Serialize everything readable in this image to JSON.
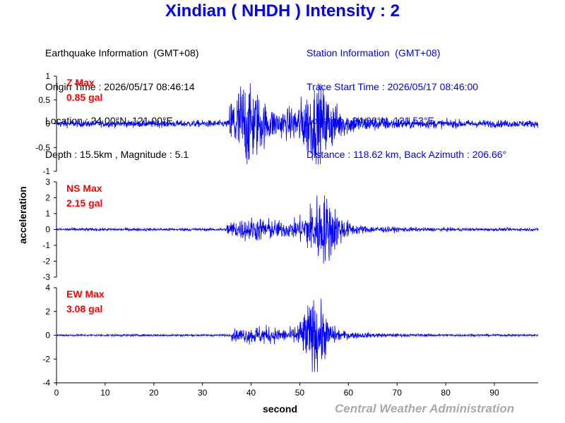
{
  "title": "Xindian ( NHDH ) Intensity : 2",
  "earthquake_info": [
    "Earthquake Information  (GMT+08)",
    "Origin Time : 2026/05/17 08:46:14",
    "Location : 24.00°N, 121.00°E",
    "Depth : 15.5km , Magnitude : 5.1"
  ],
  "station_info": [
    "Station Information  (GMT+08)",
    "Trace Start Time : 2026/05/17 08:46:00",
    "Location : 24.96°N, 121.53°E",
    "Distance : 118.62 km, Back Azimuth : 206.66°"
  ],
  "watermark": "Central Weather Administration",
  "chart_data": {
    "type": "line",
    "xlabel": "second",
    "ylabel": "acceleration",
    "xlim": [
      0,
      99
    ],
    "xticks": [
      0,
      10,
      20,
      30,
      40,
      50,
      60,
      70,
      80,
      90
    ],
    "grid": false,
    "colors": {
      "trace": "#0000ff",
      "annotation": "#ff0000",
      "axis": "#000000"
    },
    "panels": [
      {
        "component": "Z",
        "annotation": [
          "Z Max",
          "0.85 gal"
        ],
        "max_gal": 0.85,
        "ylim": [
          -1,
          1
        ],
        "yticks": [
          -1,
          -0.5,
          0,
          0.5,
          1
        ],
        "yticklabels": [
          "-1",
          "-0.5",
          "0",
          "0.5",
          "1"
        ]
      },
      {
        "component": "NS",
        "annotation": [
          "NS Max",
          "2.15 gal"
        ],
        "max_gal": 2.15,
        "ylim": [
          -3,
          3
        ],
        "yticks": [
          -3,
          -2,
          -1,
          0,
          1,
          2,
          3
        ],
        "yticklabels": [
          "-3",
          "-2",
          "-1",
          "0",
          "1",
          "2",
          "3"
        ]
      },
      {
        "component": "EW",
        "annotation": [
          "EW Max",
          "3.08 gal"
        ],
        "max_gal": 3.08,
        "ylim": [
          -4,
          4
        ],
        "yticks": [
          -4,
          -2,
          0,
          2,
          4
        ],
        "yticklabels": [
          "-4",
          "-2",
          "0",
          "2",
          "4"
        ]
      }
    ]
  }
}
